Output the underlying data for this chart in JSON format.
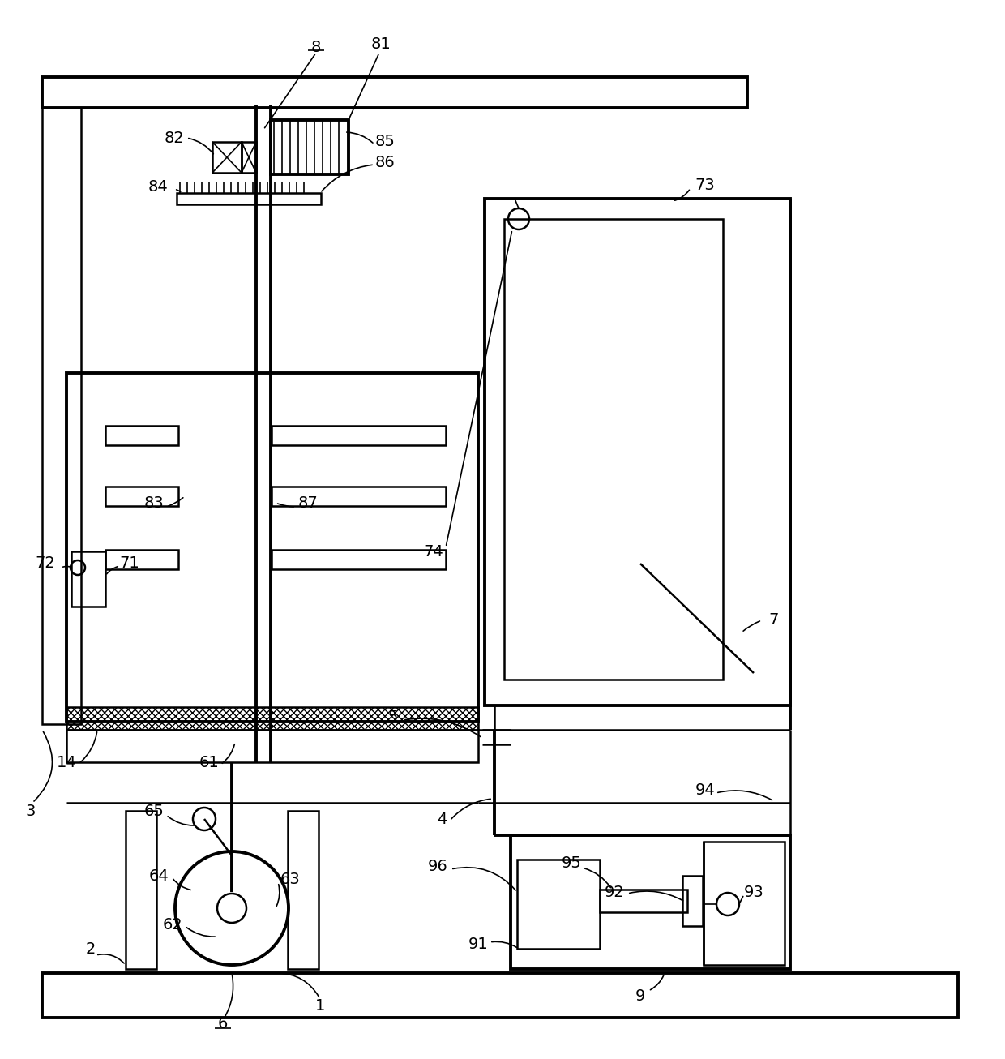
{
  "bg_color": "#ffffff",
  "lc": "#000000",
  "lw": 1.8,
  "lw2": 1.2,
  "lw3": 2.8,
  "fig_w": 12.4,
  "fig_h": 13.06
}
